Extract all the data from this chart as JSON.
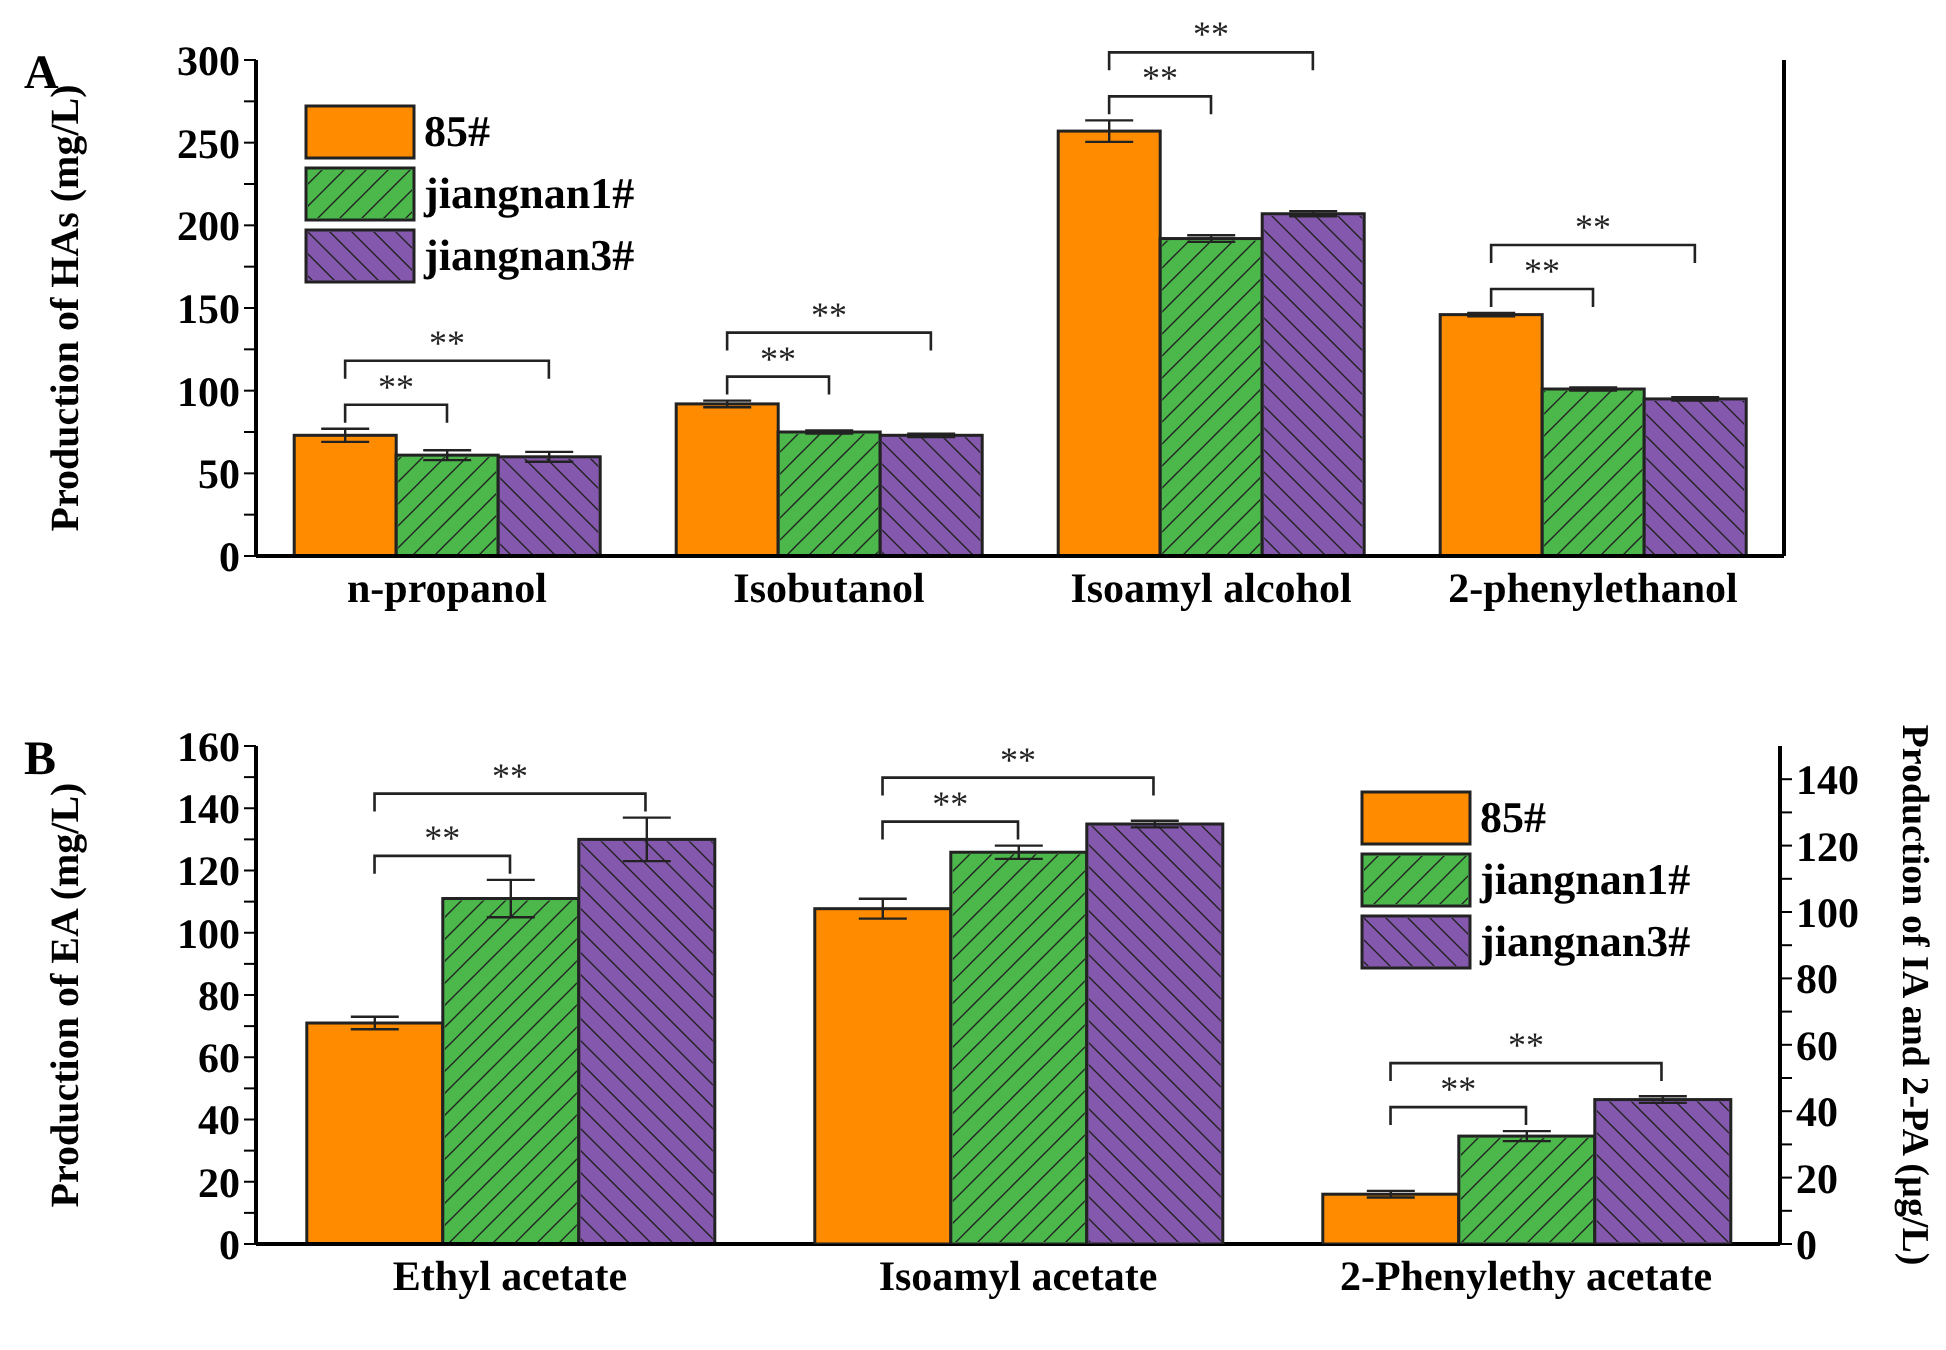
{
  "chart_data": [
    {
      "type": "bar",
      "title": "A",
      "ylabel": "Production of  HAs (mg/L)",
      "categories": [
        "n-propanol",
        "Isobutanol",
        "Isoamyl alcohol",
        "2-phenylethanol"
      ],
      "series": [
        {
          "name": "85#",
          "color": "#ff8c00",
          "values": [
            73,
            92,
            257,
            146
          ],
          "errors": [
            4,
            2,
            6.5,
            1
          ]
        },
        {
          "name": "jiangnan1#",
          "color": "#4cb84c",
          "values": [
            61,
            75,
            192,
            101
          ],
          "errors": [
            3,
            1,
            2,
            1
          ]
        },
        {
          "name": "jiangnan3#",
          "color": "#8459ad",
          "values": [
            60,
            73,
            207,
            95
          ],
          "errors": [
            3,
            1,
            1.5,
            1
          ]
        }
      ],
      "ylim": [
        0,
        300
      ],
      "yticks": [
        0,
        {
          "value": 25,
          "label": null
        },
        50,
        {
          "value": 75,
          "label": null
        },
        100,
        {
          "value": 125,
          "label": null
        },
        150,
        {
          "value": 175,
          "label": null
        },
        200,
        {
          "value": 225,
          "label": null
        },
        250,
        {
          "value": 275,
          "label": null
        },
        300
      ],
      "legend": "top left",
      "annotations": [
        "**",
        "**",
        "**",
        "**",
        "**",
        "**",
        "**",
        "**"
      ]
    },
    {
      "type": "bar",
      "title": "B",
      "ylabel": "Production of  EA (mg/L)",
      "y2label": "Production of  IA and 2-PA (µg/L)",
      "categories": [
        "Ethyl acetate",
        "Isoamyl acetate",
        "2-Phenylethy acetate"
      ],
      "series": [
        {
          "name": "85#",
          "color": "#ff8c00",
          "values": [
            71,
            null,
            null
          ],
          "errors": [
            2,
            null,
            null
          ]
        },
        {
          "name": "jiangnan1#",
          "color": "#4cb84c",
          "values": [
            111,
            null,
            null
          ],
          "errors": [
            6,
            null,
            null
          ]
        },
        {
          "name": "jiangnan3#",
          "color": "#8459ad",
          "values": [
            130,
            null,
            null
          ],
          "errors": [
            7,
            null,
            null
          ]
        },
        {
          "name": "85#",
          "color": "#ff8c00",
          "axis": "y2",
          "values": [
            null,
            101,
            15
          ],
          "errors": [
            null,
            3,
            1
          ]
        },
        {
          "name": "jiangnan1#",
          "color": "#4cb84c",
          "axis": "y2",
          "values": [
            null,
            118,
            32.5
          ],
          "errors": [
            null,
            2,
            1.5
          ]
        },
        {
          "name": "jiangnan3#",
          "color": "#8459ad",
          "axis": "y2",
          "values": [
            null,
            126.5,
            43.5
          ],
          "errors": [
            null,
            1,
            1
          ]
        }
      ],
      "ylim": [
        0,
        160
      ],
      "yticks": [
        0,
        {
          "value": 10,
          "label": null
        },
        20,
        {
          "value": 30,
          "label": null
        },
        40,
        {
          "value": 50,
          "label": null
        },
        60,
        {
          "value": 70,
          "label": null
        },
        80,
        {
          "value": 90,
          "label": null
        },
        100,
        {
          "value": 110,
          "label": null
        },
        120,
        {
          "value": 130,
          "label": null
        },
        140,
        {
          "value": 150,
          "label": null
        },
        160
      ],
      "y2lim": [
        0,
        150
      ],
      "y2ticks": [
        0,
        {
          "value": 10,
          "label": null
        },
        20,
        {
          "value": 30,
          "label": null
        },
        40,
        {
          "value": 50,
          "label": null
        },
        60,
        {
          "value": 70,
          "label": null
        },
        80,
        {
          "value": 90,
          "label": null
        },
        100,
        {
          "value": 110,
          "label": null
        },
        120,
        {
          "value": 130,
          "label": null
        },
        140
      ],
      "legend": "top right",
      "annotations": [
        "**",
        "**",
        "**",
        "**",
        "**",
        "**"
      ]
    }
  ]
}
